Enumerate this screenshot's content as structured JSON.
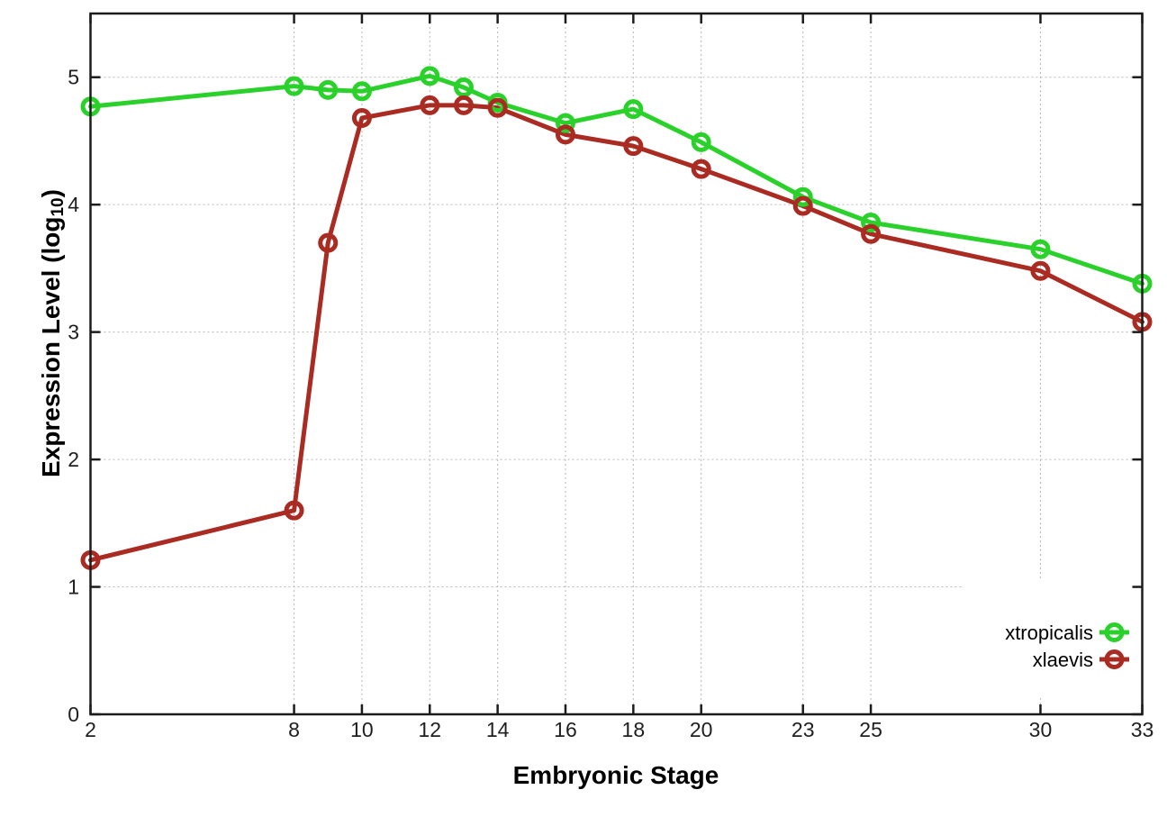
{
  "page": {
    "background": "#ffffff"
  },
  "chart_data": {
    "type": "line",
    "title": "",
    "xlabel": "Embryonic Stage",
    "ylabel": "Expression Level (log10)",
    "ylabel_parts": {
      "main": "Expression Level (log",
      "sub": "10",
      "end": ")"
    },
    "x": [
      2,
      8,
      9,
      10,
      12,
      13,
      14,
      16,
      18,
      20,
      23,
      25,
      30,
      33
    ],
    "series": [
      {
        "name": "xtropicalis",
        "color": "#2bd12b",
        "values": [
          4.77,
          4.93,
          4.9,
          4.89,
          5.01,
          4.92,
          4.8,
          4.64,
          4.75,
          4.49,
          4.06,
          3.86,
          3.65,
          3.38
        ]
      },
      {
        "name": "xlaevis",
        "color": "#aa2b22",
        "values": [
          1.21,
          1.6,
          3.7,
          4.68,
          4.78,
          4.78,
          4.76,
          4.55,
          4.46,
          4.28,
          3.99,
          3.77,
          3.48,
          3.08
        ]
      }
    ],
    "xlim": [
      2,
      33
    ],
    "ylim": [
      0,
      5.5
    ],
    "xticks": {
      "values": [
        2,
        8,
        10,
        12,
        14,
        16,
        18,
        20,
        23,
        25,
        30,
        33
      ],
      "labels": [
        "2",
        "8",
        "10",
        "12",
        "14",
        "16",
        "18",
        "20",
        "23",
        "25",
        "30",
        "33"
      ]
    },
    "yticks": {
      "values": [
        0,
        1,
        2,
        3,
        4,
        5
      ],
      "labels": [
        "0",
        "1",
        "2",
        "3",
        "4",
        "5"
      ]
    },
    "grid": true,
    "legend_position": "bottom-right",
    "legend_entries": [
      "xtropicalis",
      "xlaevis"
    ]
  },
  "colors": {
    "background": "#ffffff",
    "grid": "#b8b8b8",
    "axis_border": "#1c1c1c",
    "tick_label": "#1f1f1f",
    "axis_title": "#000000",
    "legend_text": "#000000"
  }
}
